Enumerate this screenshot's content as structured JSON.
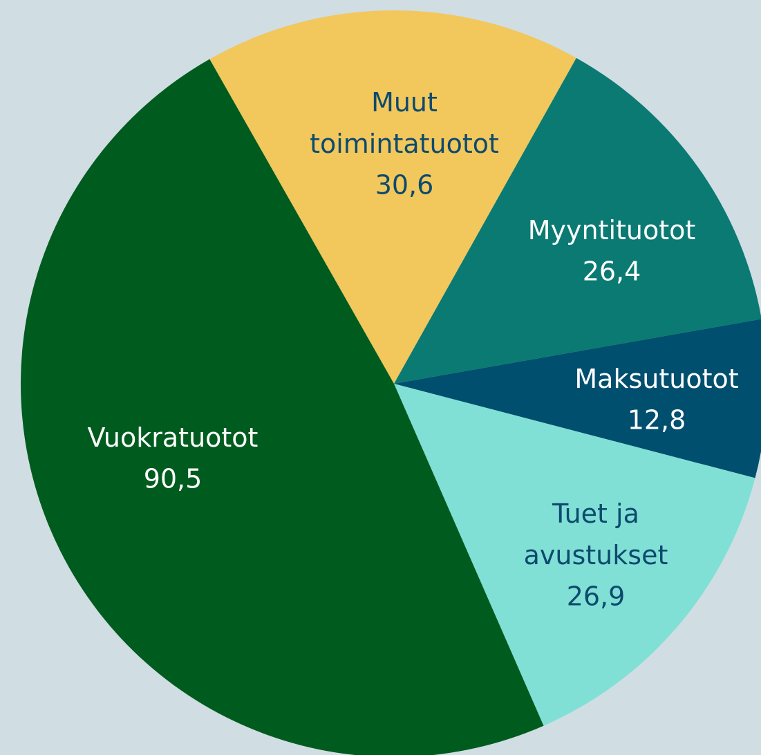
{
  "chart_data": {
    "type": "pie",
    "categories": [
      "Muut toimintatuotot",
      "Myyntituotot",
      "Maksutuotot",
      "Tuet ja avustukset",
      "Vuokratuotot"
    ],
    "values": [
      30.6,
      26.4,
      12.8,
      26.9,
      90.5
    ],
    "value_labels": [
      "30,6",
      "26,4",
      "12,8",
      "26,9",
      "90,5"
    ],
    "colors": [
      "#f2c75c",
      "#0a7a73",
      "#004f6e",
      "#80e0d5",
      "#005c1e"
    ]
  }
}
